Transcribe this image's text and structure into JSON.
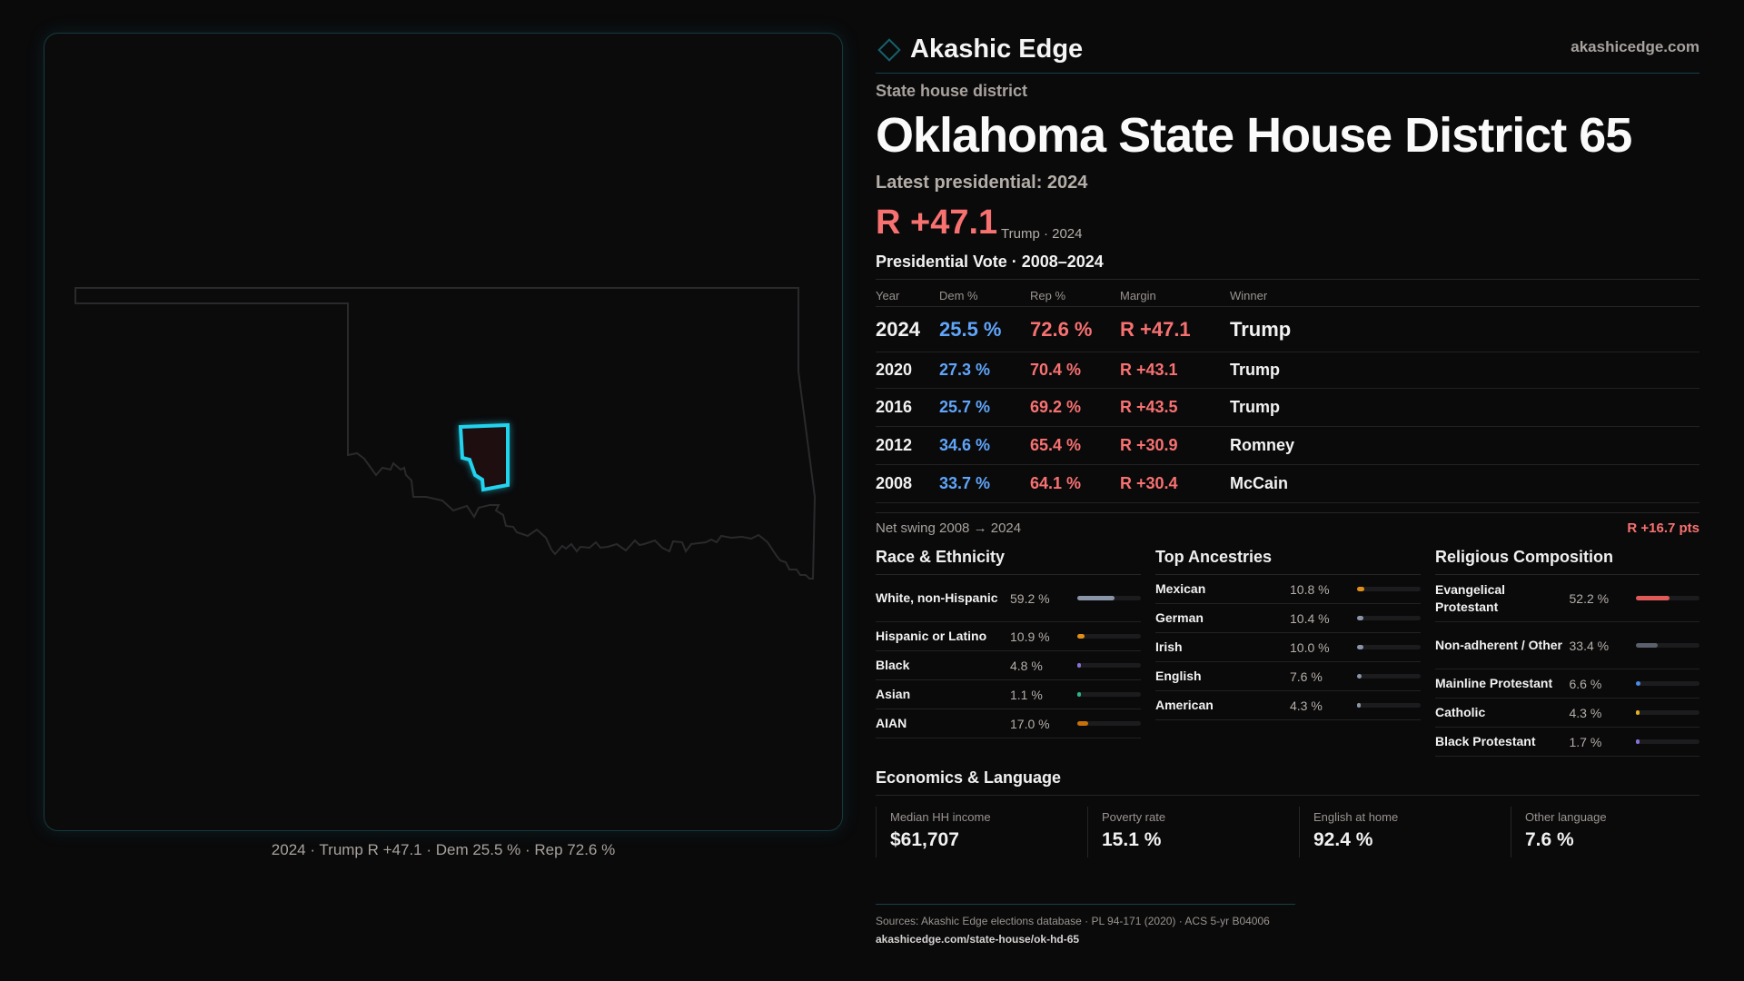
{
  "brand": {
    "name": "Akashic Edge",
    "site": "akashicedge.com",
    "accent": "#1aa6b7"
  },
  "kicker": "State house district",
  "title": "Oklahoma State House District 65",
  "latest": "Latest presidential: 2024",
  "headline_margin": "R +47.1",
  "headline_sub": "Trump · 2024",
  "pres_title": "Presidential Vote · 2008–2024",
  "table": {
    "headers": [
      "Year",
      "Dem %",
      "Rep %",
      "Margin",
      "Winner"
    ],
    "rows": [
      {
        "year": "2024",
        "dem": "25.5 %",
        "rep": "72.6 %",
        "margin": "R +47.1",
        "winner": "Trump"
      },
      {
        "year": "2020",
        "dem": "27.3 %",
        "rep": "70.4 %",
        "margin": "R +43.1",
        "winner": "Trump"
      },
      {
        "year": "2016",
        "dem": "25.7 %",
        "rep": "69.2 %",
        "margin": "R +43.5",
        "winner": "Trump"
      },
      {
        "year": "2012",
        "dem": "34.6 %",
        "rep": "65.4 %",
        "margin": "R +30.9",
        "winner": "Romney"
      },
      {
        "year": "2008",
        "dem": "33.7 %",
        "rep": "64.1 %",
        "margin": "R +30.4",
        "winner": "McCain"
      }
    ]
  },
  "swing": {
    "label": "Net swing 2008 → 2024",
    "value": "R +16.7 pts"
  },
  "race": {
    "title": "Race & Ethnicity",
    "items": [
      {
        "label": "White, non-Hispanic",
        "pct": "59.2 %",
        "value": 59.2,
        "color": "#8a95a8"
      },
      {
        "label": "Hispanic or Latino",
        "pct": "10.9 %",
        "value": 10.9,
        "color": "#e0901a"
      },
      {
        "label": "Black",
        "pct": "4.8 %",
        "value": 4.8,
        "color": "#8a6fd8"
      },
      {
        "label": "Asian",
        "pct": "1.1 %",
        "value": 1.1,
        "color": "#2bb58a"
      },
      {
        "label": "AIAN",
        "pct": "17.0 %",
        "value": 17.0,
        "color": "#c8700a"
      }
    ]
  },
  "ancestry": {
    "title": "Top Ancestries",
    "items": [
      {
        "label": "Mexican",
        "pct": "10.8 %",
        "value": 10.8,
        "color": "#e0901a"
      },
      {
        "label": "German",
        "pct": "10.4 %",
        "value": 10.4,
        "color": "#8a95a8"
      },
      {
        "label": "Irish",
        "pct": "10.0 %",
        "value": 10.0,
        "color": "#8a95a8"
      },
      {
        "label": "English",
        "pct": "7.6 %",
        "value": 7.6,
        "color": "#8a95a8"
      },
      {
        "label": "American",
        "pct": "4.3 %",
        "value": 4.3,
        "color": "#8a95a8"
      }
    ]
  },
  "religion": {
    "title": "Religious Composition",
    "items": [
      {
        "label": "Evangelical Protestant",
        "pct": "52.2 %",
        "value": 52.2,
        "color": "#e05a5a"
      },
      {
        "label": "Non-adherent / Other",
        "pct": "33.4 %",
        "value": 33.4,
        "color": "#5a606c"
      },
      {
        "label": "Mainline Protestant",
        "pct": "6.6 %",
        "value": 6.6,
        "color": "#4a8ae8"
      },
      {
        "label": "Catholic",
        "pct": "4.3 %",
        "value": 4.3,
        "color": "#e0b020"
      },
      {
        "label": "Black Protestant",
        "pct": "1.7 %",
        "value": 1.7,
        "color": "#8a6fd8"
      }
    ]
  },
  "econ": {
    "title": "Economics & Language",
    "cards": [
      {
        "label": "Median HH income",
        "value": "$61,707"
      },
      {
        "label": "Poverty rate",
        "value": "15.1 %"
      },
      {
        "label": "English at home",
        "value": "92.4 %"
      },
      {
        "label": "Other language",
        "value": "7.6 %"
      }
    ]
  },
  "sources": "Sources: Akashic Edge elections database · PL 94-171 (2020) · ACS 5-yr B04006",
  "url": "akashicedge.com/state-house/ok-hd-65",
  "map_caption": "2024 · Trump R +47.1 · Dem 25.5 % · Rep 72.6 %",
  "colors": {
    "dem": "#60a5fa",
    "rep": "#f87171",
    "district_outline": "#22d3ee"
  }
}
